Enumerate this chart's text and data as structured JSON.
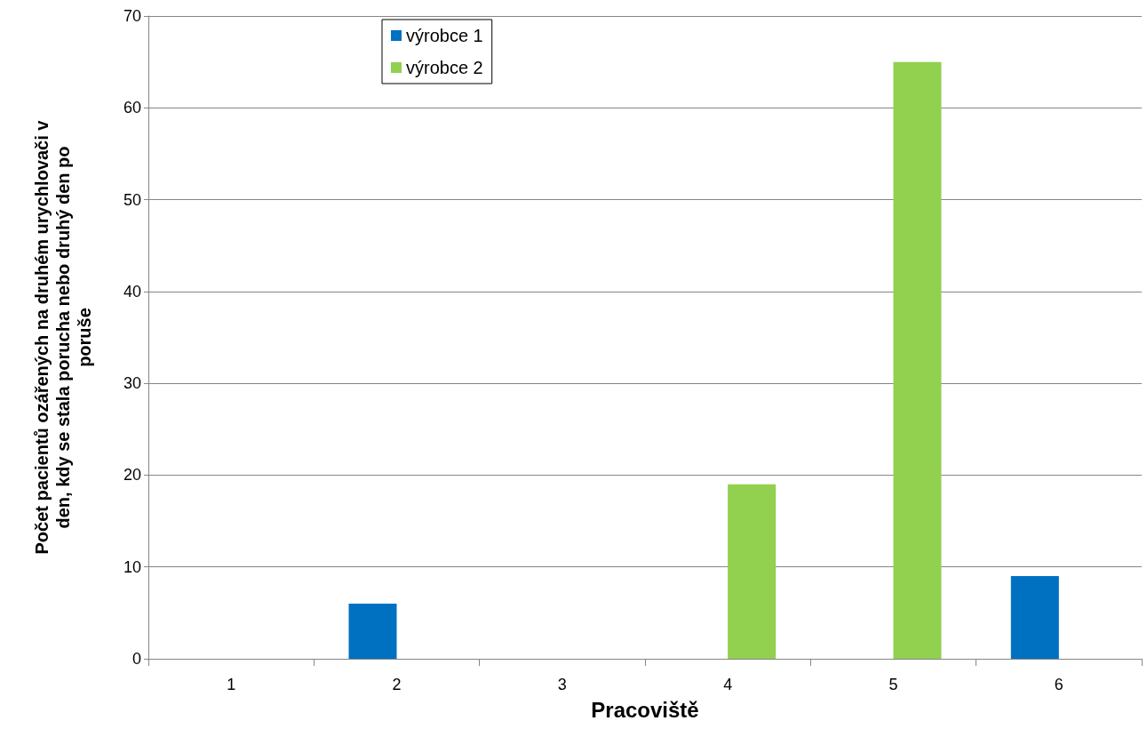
{
  "chart_data": {
    "type": "bar",
    "xlabel": "Pracoviště",
    "ylabel": "Počet pacientů ozářených na druhém urychlovači v den, kdy se stala porucha nebo druhý den po poruše",
    "categories": [
      "1",
      "2",
      "3",
      "4",
      "5",
      "6"
    ],
    "series": [
      {
        "name": "výrobce 1",
        "color": "#0070c0",
        "values": [
          0,
          6,
          0,
          0,
          0,
          9
        ]
      },
      {
        "name": "výrobce 2",
        "color": "#92d050",
        "values": [
          0,
          0,
          0,
          19,
          65,
          0
        ]
      }
    ],
    "ylim": [
      0,
      70
    ],
    "yticks": [
      0,
      10,
      20,
      30,
      40,
      50,
      60,
      70
    ],
    "grid": "y",
    "legend": "top left"
  }
}
